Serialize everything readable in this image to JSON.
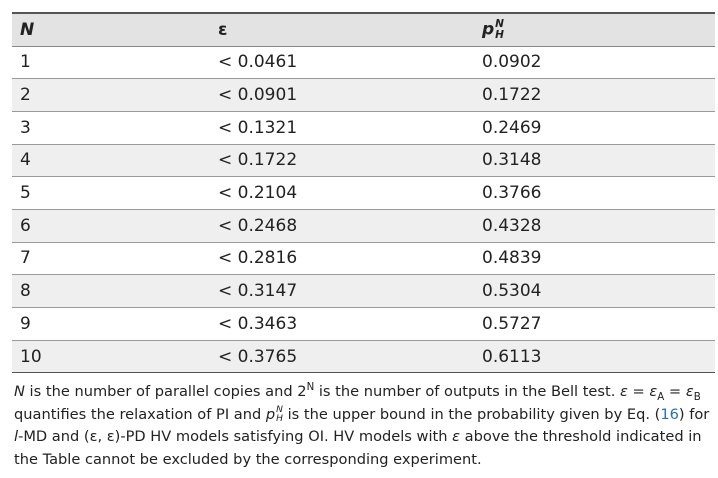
{
  "table": {
    "header": [
      {
        "text": "N",
        "format": "italic"
      },
      {
        "text": "ε",
        "format": "plain"
      },
      {
        "text": "p",
        "format": "italic",
        "sup": "N",
        "sub": "H"
      }
    ],
    "rows": [
      [
        1,
        "< 0.0461",
        "0.0902"
      ],
      [
        2,
        "< 0.0901",
        "0.1722"
      ],
      [
        3,
        "< 0.1321",
        "0.2469"
      ],
      [
        4,
        "< 0.1722",
        "0.3148"
      ],
      [
        5,
        "< 0.2104",
        "0.3766"
      ],
      [
        6,
        "< 0.2468",
        "0.4328"
      ],
      [
        7,
        "< 0.2816",
        "0.4839"
      ],
      [
        8,
        "< 0.3147",
        "0.5304"
      ],
      [
        9,
        "< 0.3463",
        "0.5727"
      ],
      [
        10,
        "< 0.3765",
        "0.6113"
      ]
    ]
  },
  "footnote": [
    {
      "text": "N",
      "format": "italic"
    },
    {
      "text": " is the number of parallel copies and 2",
      "format": "plain"
    },
    {
      "text": "N",
      "format": "sup"
    },
    {
      "text": " is the number of outputs in the Bell test. ",
      "format": "plain"
    },
    {
      "text": "ε",
      "format": "italic"
    },
    {
      "text": " = ",
      "format": "plain"
    },
    {
      "text": "ε",
      "format": "italic"
    },
    {
      "text": "A",
      "format": "sub"
    },
    {
      "text": " = ",
      "format": "plain"
    },
    {
      "text": "ε",
      "format": "italic"
    },
    {
      "text": "B",
      "format": "sub"
    },
    {
      "text": " quantifies the relaxation of PI and ",
      "format": "plain"
    },
    {
      "text": "p",
      "format": "italic",
      "sup": "N",
      "sub": "H"
    },
    {
      "text": " is the upper bound in the probability given by Eq. (",
      "format": "plain"
    },
    {
      "text": "16",
      "format": "link"
    },
    {
      "text": ") for ",
      "format": "plain"
    },
    {
      "text": "l",
      "format": "italic"
    },
    {
      "text": "-MD and (ε, ε)-PD HV models satisfying OI. HV models with ",
      "format": "plain"
    },
    {
      "text": "ε",
      "format": "italic"
    },
    {
      "text": " above the threshold indicated in the Table cannot be excluded by the corresponding experiment.",
      "format": "plain"
    }
  ]
}
